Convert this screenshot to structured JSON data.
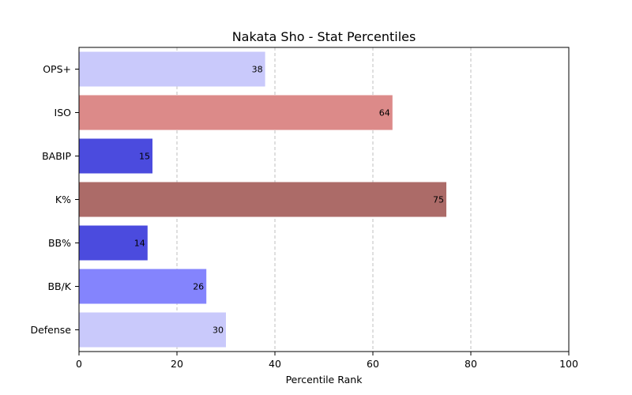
{
  "chart_data": {
    "type": "bar",
    "orientation": "horizontal",
    "title": "Nakata Sho - Stat Percentiles",
    "xlabel": "Percentile Rank",
    "ylabel": "",
    "xlim": [
      0,
      100
    ],
    "xticks": [
      "0",
      "20",
      "40",
      "60",
      "80",
      "100"
    ],
    "grid": "x-dashed",
    "categories": [
      "OPS+",
      "ISO",
      "BABIP",
      "K%",
      "BB%",
      "BB/K",
      "Defense"
    ],
    "values": [
      38,
      64,
      15,
      75,
      14,
      26,
      30
    ],
    "colors": [
      "#c9c9fb",
      "#dc8a89",
      "#4b4bde",
      "#ac6b68",
      "#4b4bde",
      "#8484fd",
      "#c9c9fb"
    ]
  }
}
